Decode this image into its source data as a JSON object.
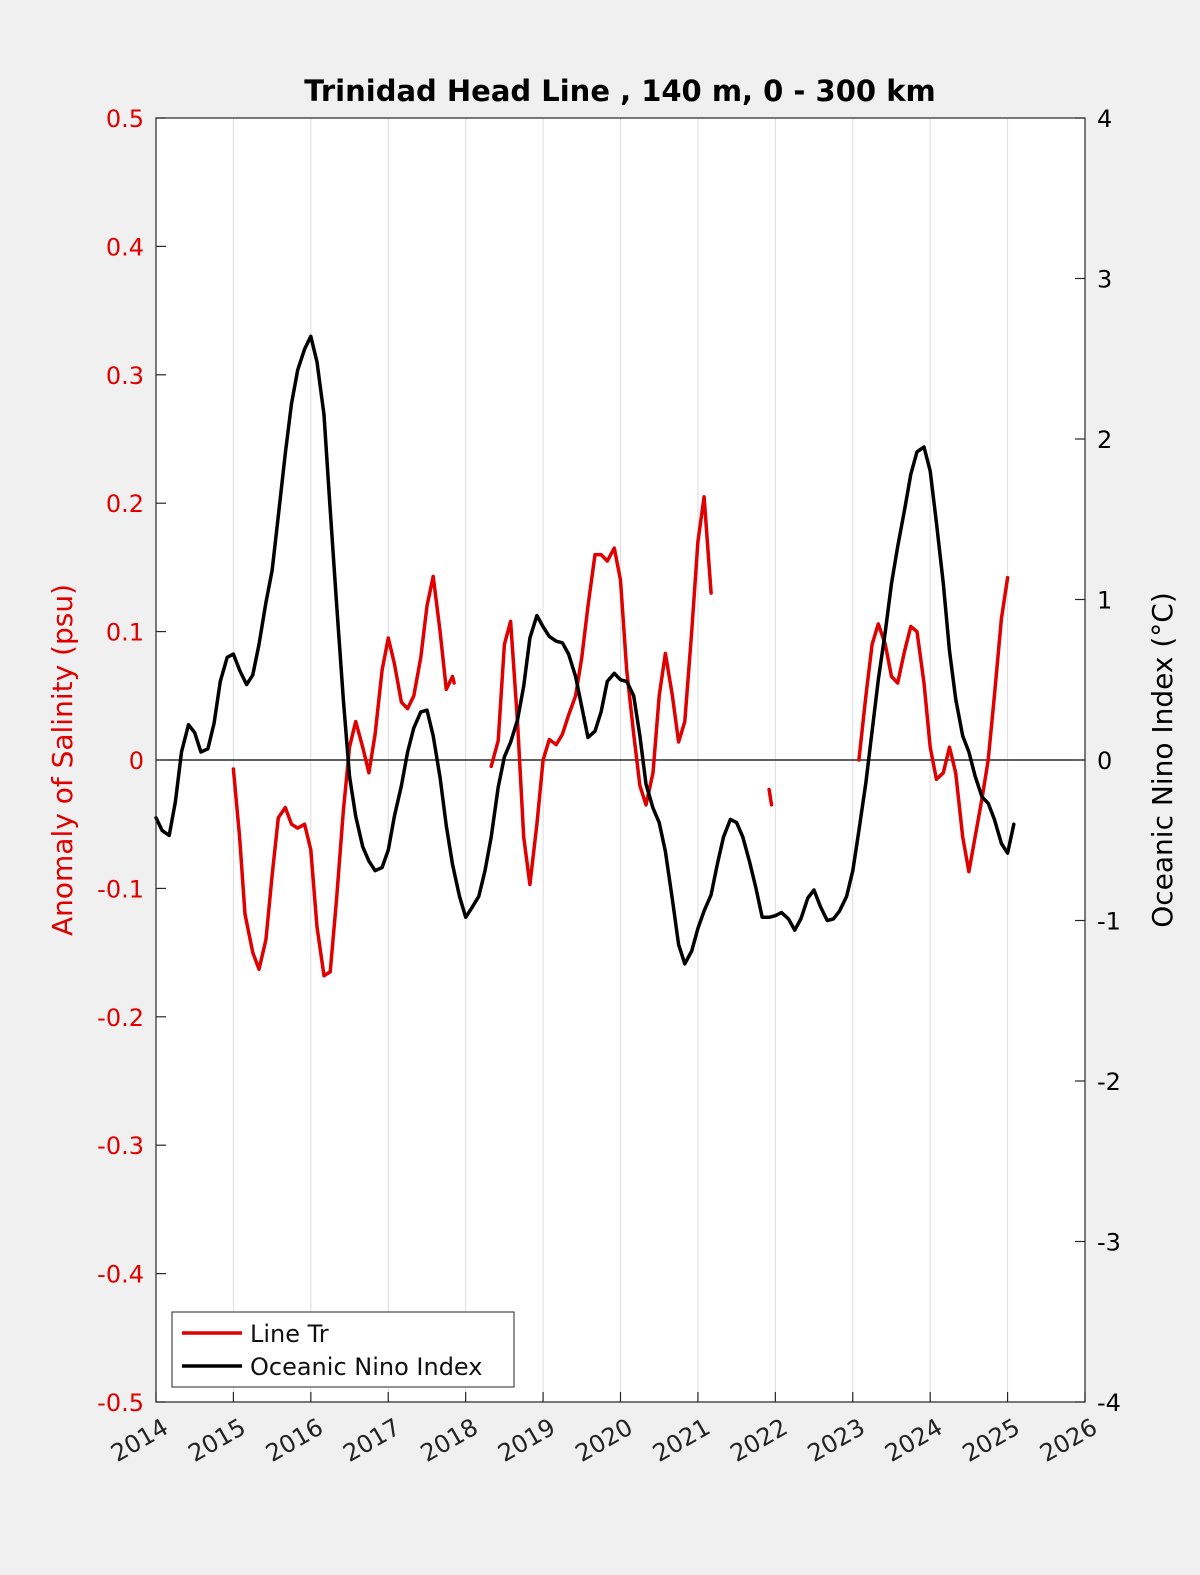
{
  "chart_data": {
    "type": "line",
    "title": "Trinidad Head Line , 140 m, 0 - 300 km",
    "ylabel_left": "Anomaly of Salinity (psu)",
    "ylabel_right": "Oceanic Nino Index (°C)",
    "xlim": [
      2014,
      2026
    ],
    "ylim_left": [
      -0.5,
      0.5
    ],
    "ylim_right": [
      -4,
      4
    ],
    "x_ticks": [
      "2014",
      "2015",
      "2016",
      "2017",
      "2018",
      "2019",
      "2020",
      "2021",
      "2022",
      "2023",
      "2024",
      "2025",
      "2026"
    ],
    "y_left_ticks": [
      "-0.5",
      "-0.4",
      "-0.3",
      "-0.2",
      "-0.1",
      "0",
      "0.1",
      "0.2",
      "0.3",
      "0.4",
      "0.5"
    ],
    "y_right_ticks": [
      "-4",
      "-3",
      "-2",
      "-1",
      "0",
      "1",
      "2",
      "3",
      "4"
    ],
    "grid": "vertical",
    "zero_line": true,
    "legend_position": "bottom-left",
    "colors": {
      "salinity": "#e00000",
      "oni": "#000000",
      "grid": "#dddddd"
    },
    "series": [
      {
        "name": "Line Tr",
        "axis": "left",
        "segments": [
          [
            [
              2015.0,
              -0.007
            ],
            [
              2015.08,
              -0.06
            ],
            [
              2015.15,
              -0.12
            ],
            [
              2015.25,
              -0.15
            ],
            [
              2015.33,
              -0.163
            ],
            [
              2015.42,
              -0.14
            ],
            [
              2015.5,
              -0.09
            ],
            [
              2015.58,
              -0.045
            ],
            [
              2015.67,
              -0.037
            ],
            [
              2015.75,
              -0.05
            ],
            [
              2015.83,
              -0.053
            ],
            [
              2015.92,
              -0.05
            ],
            [
              2016.0,
              -0.07
            ],
            [
              2016.08,
              -0.13
            ],
            [
              2016.17,
              -0.168
            ],
            [
              2016.25,
              -0.165
            ],
            [
              2016.33,
              -0.11
            ],
            [
              2016.42,
              -0.04
            ],
            [
              2016.5,
              0.01
            ],
            [
              2016.58,
              0.03
            ],
            [
              2016.67,
              0.01
            ],
            [
              2016.75,
              -0.01
            ],
            [
              2016.83,
              0.02
            ],
            [
              2016.92,
              0.07
            ],
            [
              2017.0,
              0.095
            ],
            [
              2017.08,
              0.075
            ],
            [
              2017.17,
              0.045
            ],
            [
              2017.25,
              0.04
            ],
            [
              2017.33,
              0.05
            ],
            [
              2017.42,
              0.08
            ],
            [
              2017.5,
              0.12
            ],
            [
              2017.58,
              0.143
            ],
            [
              2017.67,
              0.1
            ],
            [
              2017.75,
              0.055
            ],
            [
              2017.83,
              0.065
            ],
            [
              2017.85,
              0.06
            ]
          ],
          [
            [
              2018.33,
              -0.005
            ],
            [
              2018.42,
              0.015
            ],
            [
              2018.5,
              0.09
            ],
            [
              2018.58,
              0.108
            ],
            [
              2018.67,
              0.03
            ],
            [
              2018.75,
              -0.06
            ],
            [
              2018.83,
              -0.097
            ],
            [
              2018.92,
              -0.05
            ],
            [
              2019.0,
              0.0
            ],
            [
              2019.08,
              0.016
            ],
            [
              2019.17,
              0.012
            ],
            [
              2019.25,
              0.02
            ],
            [
              2019.33,
              0.035
            ],
            [
              2019.42,
              0.05
            ],
            [
              2019.5,
              0.08
            ],
            [
              2019.58,
              0.12
            ],
            [
              2019.67,
              0.16
            ],
            [
              2019.75,
              0.16
            ],
            [
              2019.83,
              0.155
            ],
            [
              2019.92,
              0.165
            ],
            [
              2020.0,
              0.14
            ],
            [
              2020.08,
              0.07
            ],
            [
              2020.17,
              0.02
            ],
            [
              2020.25,
              -0.02
            ],
            [
              2020.33,
              -0.035
            ],
            [
              2020.42,
              -0.01
            ],
            [
              2020.5,
              0.05
            ],
            [
              2020.58,
              0.083
            ],
            [
              2020.67,
              0.05
            ],
            [
              2020.75,
              0.014
            ],
            [
              2020.83,
              0.03
            ],
            [
              2020.92,
              0.1
            ],
            [
              2021.0,
              0.17
            ],
            [
              2021.08,
              0.205
            ],
            [
              2021.17,
              0.13
            ]
          ],
          [
            [
              2021.92,
              -0.023
            ],
            [
              2021.95,
              -0.035
            ]
          ],
          [
            [
              2023.08,
              0.0
            ],
            [
              2023.17,
              0.05
            ],
            [
              2023.25,
              0.09
            ],
            [
              2023.33,
              0.106
            ],
            [
              2023.42,
              0.09
            ],
            [
              2023.5,
              0.065
            ],
            [
              2023.58,
              0.06
            ],
            [
              2023.67,
              0.085
            ],
            [
              2023.75,
              0.104
            ],
            [
              2023.83,
              0.1
            ],
            [
              2023.92,
              0.06
            ],
            [
              2024.0,
              0.01
            ],
            [
              2024.08,
              -0.015
            ],
            [
              2024.17,
              -0.01
            ],
            [
              2024.25,
              0.01
            ],
            [
              2024.33,
              -0.01
            ],
            [
              2024.42,
              -0.06
            ],
            [
              2024.5,
              -0.087
            ],
            [
              2024.58,
              -0.06
            ],
            [
              2024.67,
              -0.03
            ],
            [
              2024.75,
              0.0
            ],
            [
              2024.83,
              0.05
            ],
            [
              2024.92,
              0.11
            ],
            [
              2025.0,
              0.142
            ]
          ]
        ]
      },
      {
        "name": "Oceanic Nino Index",
        "axis": "right",
        "segments": [
          [
            [
              2014.0,
              -0.36
            ],
            [
              2014.08,
              -0.44
            ],
            [
              2014.17,
              -0.47
            ],
            [
              2014.25,
              -0.26
            ],
            [
              2014.33,
              0.05
            ],
            [
              2014.42,
              0.22
            ],
            [
              2014.5,
              0.17
            ],
            [
              2014.58,
              0.05
            ],
            [
              2014.67,
              0.07
            ],
            [
              2014.75,
              0.23
            ],
            [
              2014.83,
              0.49
            ],
            [
              2014.92,
              0.64
            ],
            [
              2015.0,
              0.66
            ],
            [
              2015.08,
              0.56
            ],
            [
              2015.17,
              0.47
            ],
            [
              2015.25,
              0.53
            ],
            [
              2015.33,
              0.72
            ],
            [
              2015.42,
              0.98
            ],
            [
              2015.5,
              1.18
            ],
            [
              2015.58,
              1.52
            ],
            [
              2015.67,
              1.91
            ],
            [
              2015.75,
              2.22
            ],
            [
              2015.83,
              2.43
            ],
            [
              2015.92,
              2.56
            ],
            [
              2016.0,
              2.64
            ],
            [
              2016.08,
              2.48
            ],
            [
              2016.17,
              2.15
            ],
            [
              2016.25,
              1.56
            ],
            [
              2016.33,
              0.99
            ],
            [
              2016.42,
              0.38
            ],
            [
              2016.5,
              -0.1
            ],
            [
              2016.58,
              -0.35
            ],
            [
              2016.67,
              -0.54
            ],
            [
              2016.75,
              -0.63
            ],
            [
              2016.83,
              -0.69
            ],
            [
              2016.92,
              -0.67
            ],
            [
              2017.0,
              -0.56
            ],
            [
              2017.08,
              -0.35
            ],
            [
              2017.17,
              -0.16
            ],
            [
              2017.25,
              0.05
            ],
            [
              2017.33,
              0.2
            ],
            [
              2017.42,
              0.3
            ],
            [
              2017.5,
              0.31
            ],
            [
              2017.58,
              0.15
            ],
            [
              2017.67,
              -0.11
            ],
            [
              2017.75,
              -0.41
            ],
            [
              2017.83,
              -0.65
            ],
            [
              2017.92,
              -0.85
            ],
            [
              2018.0,
              -0.98
            ],
            [
              2018.08,
              -0.92
            ],
            [
              2018.17,
              -0.85
            ],
            [
              2018.25,
              -0.69
            ],
            [
              2018.33,
              -0.48
            ],
            [
              2018.42,
              -0.17
            ],
            [
              2018.5,
              0.02
            ],
            [
              2018.58,
              0.11
            ],
            [
              2018.67,
              0.25
            ],
            [
              2018.75,
              0.46
            ],
            [
              2018.83,
              0.76
            ],
            [
              2018.92,
              0.9
            ],
            [
              2019.0,
              0.83
            ],
            [
              2019.08,
              0.77
            ],
            [
              2019.17,
              0.74
            ],
            [
              2019.25,
              0.73
            ],
            [
              2019.33,
              0.66
            ],
            [
              2019.42,
              0.52
            ],
            [
              2019.5,
              0.33
            ],
            [
              2019.58,
              0.14
            ],
            [
              2019.67,
              0.18
            ],
            [
              2019.75,
              0.3
            ],
            [
              2019.83,
              0.49
            ],
            [
              2019.92,
              0.54
            ],
            [
              2020.0,
              0.5
            ],
            [
              2020.08,
              0.49
            ],
            [
              2020.17,
              0.4
            ],
            [
              2020.25,
              0.15
            ],
            [
              2020.33,
              -0.15
            ],
            [
              2020.42,
              -0.3
            ],
            [
              2020.5,
              -0.39
            ],
            [
              2020.58,
              -0.57
            ],
            [
              2020.67,
              -0.87
            ],
            [
              2020.75,
              -1.15
            ],
            [
              2020.83,
              -1.27
            ],
            [
              2020.92,
              -1.19
            ],
            [
              2021.0,
              -1.05
            ],
            [
              2021.08,
              -0.94
            ],
            [
              2021.17,
              -0.84
            ],
            [
              2021.25,
              -0.65
            ],
            [
              2021.33,
              -0.48
            ],
            [
              2021.42,
              -0.37
            ],
            [
              2021.5,
              -0.39
            ],
            [
              2021.58,
              -0.48
            ],
            [
              2021.67,
              -0.64
            ],
            [
              2021.75,
              -0.8
            ],
            [
              2021.83,
              -0.98
            ],
            [
              2021.92,
              -0.98
            ],
            [
              2022.0,
              -0.97
            ],
            [
              2022.08,
              -0.95
            ],
            [
              2022.17,
              -0.99
            ],
            [
              2022.25,
              -1.06
            ],
            [
              2022.33,
              -0.99
            ],
            [
              2022.42,
              -0.86
            ],
            [
              2022.5,
              -0.81
            ],
            [
              2022.58,
              -0.91
            ],
            [
              2022.67,
              -1.0
            ],
            [
              2022.75,
              -0.99
            ],
            [
              2022.83,
              -0.94
            ],
            [
              2022.92,
              -0.85
            ],
            [
              2023.0,
              -0.69
            ],
            [
              2023.08,
              -0.44
            ],
            [
              2023.17,
              -0.14
            ],
            [
              2023.25,
              0.18
            ],
            [
              2023.33,
              0.5
            ],
            [
              2023.42,
              0.8
            ],
            [
              2023.5,
              1.1
            ],
            [
              2023.58,
              1.33
            ],
            [
              2023.67,
              1.56
            ],
            [
              2023.75,
              1.78
            ],
            [
              2023.83,
              1.92
            ],
            [
              2023.92,
              1.95
            ],
            [
              2024.0,
              1.8
            ],
            [
              2024.08,
              1.48
            ],
            [
              2024.17,
              1.1
            ],
            [
              2024.25,
              0.68
            ],
            [
              2024.33,
              0.38
            ],
            [
              2024.42,
              0.15
            ],
            [
              2024.5,
              0.05
            ],
            [
              2024.58,
              -0.1
            ],
            [
              2024.67,
              -0.23
            ],
            [
              2024.75,
              -0.27
            ],
            [
              2024.83,
              -0.37
            ],
            [
              2024.92,
              -0.52
            ],
            [
              2025.0,
              -0.58
            ],
            [
              2025.08,
              -0.4
            ]
          ]
        ]
      }
    ]
  }
}
